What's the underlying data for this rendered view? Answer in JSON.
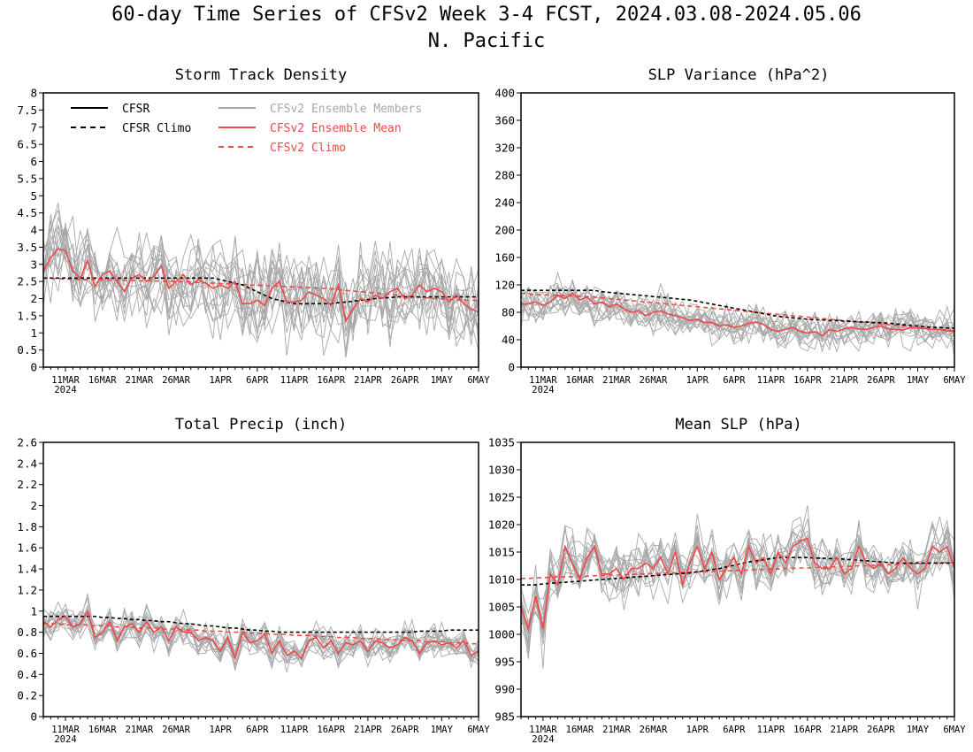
{
  "figure": {
    "title_line1": "60-day Time Series of CFSv2 Week 3-4 FCST, 2024.03.08-2024.05.06",
    "title_line2": "N. Pacific"
  },
  "colors": {
    "cfsr": "#000000",
    "ensemble_members": "#a8a8a8",
    "ensemble_mean": "#f04848",
    "cfsv2_climo": "#f04848"
  },
  "legend": {
    "cfsr": "CFSR",
    "cfsr_climo": "CFSR Climo",
    "members": "CFSv2 Ensemble Members",
    "mean": "CFSv2 Ensemble Mean",
    "cfsv2_climo": "CFSv2 Climo"
  },
  "chart_data": [
    {
      "type": "line",
      "title": "Storm Track Density",
      "ylim": [
        0,
        8
      ],
      "yticks": [
        "0",
        "0.5",
        "1",
        "1.5",
        "2",
        "2.5",
        "3",
        "3.5",
        "4",
        "4.5",
        "5",
        "5.5",
        "6",
        "6.5",
        "7",
        "7.5",
        "8"
      ],
      "xticks": [
        "11MAR",
        "16MAR",
        "21MAR",
        "26MAR",
        "1APR",
        "6APR",
        "11APR",
        "16APR",
        "21APR",
        "26APR",
        "1MAY",
        "6MAY"
      ],
      "xyear": "2024",
      "x_start": "2024-03-08",
      "legend_position": "top-left",
      "series": [
        {
          "name": "CFSR",
          "values": []
        },
        {
          "name": "CFSR Climo",
          "values": [
            2.6,
            2.6,
            2.6,
            2.6,
            2.6,
            2.6,
            2.6,
            2.6,
            2.6,
            2.6,
            2.6,
            2.6,
            2.6,
            2.6,
            2.6,
            2.6,
            2.6,
            2.6,
            2.6,
            2.6,
            2.6,
            2.6,
            2.6,
            2.6,
            2.55,
            2.5,
            2.45,
            2.4,
            2.3,
            2.2,
            2.1,
            2.0,
            1.95,
            1.9,
            1.85,
            1.85,
            1.85,
            1.85,
            1.85,
            1.85,
            1.88,
            1.9,
            1.92,
            1.95,
            1.97,
            2.0,
            2.02,
            2.03,
            2.05,
            2.05,
            2.05,
            2.05,
            2.05,
            2.05,
            2.05,
            2.05,
            2.05,
            2.05,
            2.05,
            2.05
          ]
        },
        {
          "name": "CFSv2 Climo",
          "values": [
            2.6,
            2.59,
            2.58,
            2.57,
            2.57,
            2.56,
            2.56,
            2.55,
            2.55,
            2.54,
            2.54,
            2.53,
            2.53,
            2.52,
            2.52,
            2.51,
            2.51,
            2.5,
            2.5,
            2.49,
            2.48,
            2.47,
            2.46,
            2.45,
            2.44,
            2.43,
            2.42,
            2.41,
            2.4,
            2.39,
            2.38,
            2.37,
            2.36,
            2.35,
            2.34,
            2.33,
            2.32,
            2.31,
            2.3,
            2.28,
            2.26,
            2.24,
            2.22,
            2.2,
            2.18,
            2.16,
            2.14,
            2.12,
            2.1,
            2.08,
            2.06,
            2.04,
            2.02,
            2.0,
            1.99,
            1.98,
            1.97,
            1.96,
            1.95,
            1.95
          ]
        },
        {
          "name": "CFSv2 Ensemble Mean",
          "values": [
            2.8,
            3.2,
            3.45,
            3.4,
            2.8,
            2.6,
            3.1,
            2.35,
            2.7,
            2.8,
            2.5,
            2.2,
            2.6,
            2.7,
            2.5,
            2.65,
            2.95,
            2.3,
            2.5,
            2.7,
            2.4,
            2.55,
            2.45,
            2.3,
            2.4,
            2.3,
            2.5,
            1.85,
            1.85,
            1.95,
            1.8,
            2.3,
            2.5,
            1.9,
            1.9,
            1.95,
            2.2,
            2.1,
            2.0,
            1.8,
            2.4,
            1.35,
            1.7,
            2.0,
            1.9,
            2.1,
            2.0,
            2.2,
            2.3,
            2.0,
            2.1,
            2.4,
            2.2,
            2.3,
            2.2,
            1.9,
            2.1,
            1.85,
            1.7,
            1.6
          ]
        }
      ]
    },
    {
      "type": "line",
      "title": "SLP Variance (hPa^2)",
      "ylim": [
        0,
        400
      ],
      "yticks": [
        "0",
        "40",
        "80",
        "120",
        "160",
        "200",
        "240",
        "280",
        "320",
        "360",
        "400"
      ],
      "xticks": [
        "11MAR",
        "16MAR",
        "21MAR",
        "26MAR",
        "1APR",
        "6APR",
        "11APR",
        "16APR",
        "21APR",
        "26APR",
        "1MAY",
        "6MAY"
      ],
      "xyear": "2024",
      "x_start": "2024-03-08",
      "series": [
        {
          "name": "CFSR",
          "values": []
        },
        {
          "name": "CFSR Climo",
          "values": [
            112,
            112,
            112,
            112,
            112,
            112,
            112,
            112,
            112,
            112,
            112,
            110,
            109,
            108,
            107,
            106,
            105,
            104,
            103,
            102,
            101,
            100,
            99,
            98,
            96,
            94,
            92,
            90,
            88,
            86,
            84,
            82,
            80,
            78,
            76,
            74,
            73,
            72,
            71,
            70,
            69,
            69,
            68,
            68,
            67,
            67,
            66,
            66,
            65,
            65,
            64,
            63,
            62,
            61,
            60,
            59,
            58,
            58,
            57,
            57
          ]
        },
        {
          "name": "CFSv2 Climo",
          "values": [
            108,
            107,
            106,
            106,
            105,
            105,
            104,
            104,
            103,
            103,
            102,
            101,
            100,
            99,
            98,
            97,
            96,
            95,
            94,
            93,
            92,
            91,
            90,
            89,
            88,
            87,
            86,
            85,
            84,
            83,
            82,
            81,
            80,
            79,
            78,
            77,
            76,
            75,
            74,
            73,
            72,
            71,
            70,
            69,
            68,
            67,
            66,
            65,
            64,
            63,
            62,
            61,
            60,
            59,
            58,
            57,
            56,
            55,
            54,
            53
          ]
        },
        {
          "name": "CFSv2 Ensemble Mean",
          "values": [
            92,
            92,
            95,
            90,
            95,
            105,
            100,
            108,
            98,
            102,
            92,
            95,
            88,
            92,
            85,
            80,
            82,
            75,
            80,
            82,
            78,
            75,
            72,
            68,
            70,
            65,
            65,
            60,
            62,
            58,
            60,
            64,
            66,
            62,
            55,
            52,
            55,
            58,
            52,
            50,
            52,
            46,
            55,
            52,
            56,
            58,
            56,
            55,
            58,
            60,
            56,
            55,
            54,
            58,
            57,
            56,
            55,
            55,
            53,
            52
          ]
        }
      ]
    },
    {
      "type": "line",
      "title": "Total Precip (inch)",
      "ylim": [
        0,
        2.6
      ],
      "yticks": [
        "0",
        "0.2",
        "0.4",
        "0.6",
        "0.8",
        "1",
        "1.2",
        "1.4",
        "1.6",
        "1.8",
        "2",
        "2.2",
        "2.4",
        "2.6"
      ],
      "xticks": [
        "11MAR",
        "16MAR",
        "21MAR",
        "26MAR",
        "1APR",
        "6APR",
        "11APR",
        "16APR",
        "21APR",
        "26APR",
        "1MAY",
        "6MAY"
      ],
      "xyear": "2024",
      "x_start": "2024-03-08",
      "series": [
        {
          "name": "CFSR",
          "values": []
        },
        {
          "name": "CFSR Climo",
          "values": [
            0.95,
            0.95,
            0.95,
            0.95,
            0.95,
            0.95,
            0.95,
            0.95,
            0.94,
            0.94,
            0.93,
            0.93,
            0.92,
            0.92,
            0.91,
            0.91,
            0.9,
            0.9,
            0.89,
            0.88,
            0.88,
            0.87,
            0.86,
            0.86,
            0.85,
            0.84,
            0.84,
            0.83,
            0.82,
            0.82,
            0.81,
            0.81,
            0.8,
            0.8,
            0.8,
            0.8,
            0.8,
            0.8,
            0.8,
            0.8,
            0.8,
            0.8,
            0.8,
            0.8,
            0.8,
            0.8,
            0.8,
            0.8,
            0.8,
            0.8,
            0.8,
            0.81,
            0.81,
            0.81,
            0.81,
            0.82,
            0.82,
            0.82,
            0.82,
            0.82
          ]
        },
        {
          "name": "CFSv2 Climo",
          "values": [
            0.88,
            0.88,
            0.88,
            0.87,
            0.87,
            0.87,
            0.87,
            0.86,
            0.86,
            0.86,
            0.85,
            0.85,
            0.85,
            0.84,
            0.84,
            0.84,
            0.83,
            0.83,
            0.83,
            0.82,
            0.82,
            0.82,
            0.81,
            0.81,
            0.81,
            0.8,
            0.8,
            0.8,
            0.79,
            0.79,
            0.79,
            0.78,
            0.78,
            0.78,
            0.77,
            0.77,
            0.77,
            0.76,
            0.76,
            0.76,
            0.75,
            0.75,
            0.75,
            0.74,
            0.74,
            0.74,
            0.73,
            0.73,
            0.73,
            0.72,
            0.72,
            0.72,
            0.71,
            0.71,
            0.71,
            0.7,
            0.7,
            0.7,
            0.69,
            0.69
          ]
        },
        {
          "name": "CFSv2 Ensemble Mean",
          "values": [
            0.9,
            0.85,
            0.92,
            0.95,
            0.85,
            0.88,
            1.0,
            0.75,
            0.8,
            0.9,
            0.72,
            0.85,
            0.88,
            0.8,
            0.9,
            0.8,
            0.85,
            0.72,
            0.85,
            0.8,
            0.8,
            0.72,
            0.75,
            0.72,
            0.62,
            0.75,
            0.55,
            0.8,
            0.7,
            0.72,
            0.78,
            0.6,
            0.72,
            0.58,
            0.62,
            0.55,
            0.72,
            0.75,
            0.65,
            0.72,
            0.6,
            0.7,
            0.68,
            0.72,
            0.62,
            0.72,
            0.7,
            0.65,
            0.68,
            0.75,
            0.72,
            0.6,
            0.7,
            0.72,
            0.68,
            0.7,
            0.65,
            0.72,
            0.58,
            0.62
          ]
        }
      ]
    },
    {
      "type": "line",
      "title": "Mean SLP (hPa)",
      "ylim": [
        985,
        1035
      ],
      "yticks": [
        "985",
        "990",
        "995",
        "1000",
        "1005",
        "1010",
        "1015",
        "1020",
        "1025",
        "1030",
        "1035"
      ],
      "xticks": [
        "11MAR",
        "16MAR",
        "21MAR",
        "26MAR",
        "1APR",
        "6APR",
        "11APR",
        "16APR",
        "21APR",
        "26APR",
        "1MAY",
        "6MAY"
      ],
      "xyear": "2024",
      "x_start": "2024-03-08",
      "series": [
        {
          "name": "CFSR",
          "values": []
        },
        {
          "name": "CFSR Climo",
          "values": [
            1009,
            1009,
            1009,
            1009.2,
            1009.3,
            1009.4,
            1009.5,
            1009.6,
            1009.7,
            1009.8,
            1009.9,
            1010,
            1010.1,
            1010.2,
            1010.3,
            1010.4,
            1010.5,
            1010.6,
            1010.7,
            1010.8,
            1010.9,
            1011,
            1011.1,
            1011.2,
            1011.4,
            1011.6,
            1011.8,
            1012,
            1012.3,
            1012.6,
            1012.9,
            1013.2,
            1013.4,
            1013.6,
            1013.8,
            1014,
            1014,
            1014,
            1014,
            1014,
            1013.9,
            1013.9,
            1013.8,
            1013.8,
            1013.7,
            1013.6,
            1013.5,
            1013.4,
            1013.3,
            1013.2,
            1013.1,
            1013,
            1013,
            1013,
            1013,
            1013,
            1013,
            1013,
            1013,
            1013
          ]
        },
        {
          "name": "CFSv2 Climo",
          "values": [
            1010.2,
            1010.2,
            1010.3,
            1010.3,
            1010.4,
            1010.4,
            1010.5,
            1010.5,
            1010.6,
            1010.6,
            1010.7,
            1010.7,
            1010.8,
            1010.8,
            1010.9,
            1010.9,
            1011,
            1011,
            1011.1,
            1011.1,
            1011.2,
            1011.2,
            1011.3,
            1011.3,
            1011.4,
            1011.4,
            1011.5,
            1011.5,
            1011.6,
            1011.6,
            1011.7,
            1011.7,
            1011.8,
            1011.8,
            1011.9,
            1011.9,
            1012,
            1012,
            1012.1,
            1012.1,
            1012.2,
            1012.2,
            1012.3,
            1012.3,
            1012.4,
            1012.4,
            1012.5,
            1012.5,
            1012.6,
            1012.6,
            1012.7,
            1012.7,
            1012.8,
            1012.8,
            1012.9,
            1012.9,
            1013,
            1013,
            1013.1,
            1013.1
          ]
        },
        {
          "name": "CFSv2 Ensemble Mean",
          "values": [
            1005,
            1001,
            1007,
            1001,
            1011,
            1009,
            1016,
            1013,
            1010,
            1014,
            1016,
            1011,
            1011,
            1012,
            1010,
            1012,
            1012,
            1013,
            1012,
            1014,
            1011,
            1015,
            1009,
            1013,
            1016,
            1012,
            1015,
            1010,
            1012,
            1014,
            1011,
            1016,
            1013,
            1014,
            1011,
            1015,
            1013,
            1016,
            1017,
            1017.5,
            1013,
            1012,
            1012,
            1014,
            1011,
            1012,
            1016,
            1013,
            1012,
            1013,
            1011,
            1012,
            1014,
            1012,
            1011,
            1012,
            1016,
            1015,
            1016,
            1012
          ]
        }
      ]
    }
  ]
}
